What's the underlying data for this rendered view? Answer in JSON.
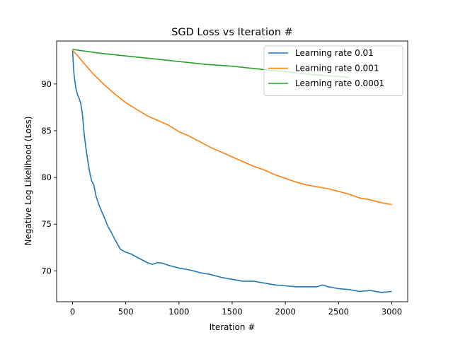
{
  "chart_data": {
    "type": "line",
    "title": "SGD Loss vs Iteration #",
    "xlabel": "Iteration #",
    "ylabel": "Negative Log Likelihood (Loss)",
    "xlim": [
      -150,
      3150
    ],
    "ylim": [
      66.7,
      94.6
    ],
    "xticks": [
      0,
      500,
      1000,
      1500,
      2000,
      2500,
      3000
    ],
    "yticks": [
      70,
      75,
      80,
      85,
      90
    ],
    "grid": false,
    "legend_position": "top-right",
    "series": [
      {
        "name": "Learning rate 0.01",
        "color": "#1f77b4",
        "x": [
          0,
          10,
          20,
          30,
          45,
          60,
          75,
          90,
          100,
          110,
          125,
          140,
          160,
          180,
          200,
          220,
          250,
          280,
          300,
          330,
          360,
          400,
          450,
          500,
          550,
          600,
          650,
          700,
          750,
          800,
          850,
          900,
          1000,
          1100,
          1200,
          1300,
          1400,
          1500,
          1600,
          1700,
          1800,
          1900,
          2000,
          2100,
          2200,
          2300,
          2350,
          2400,
          2500,
          2600,
          2700,
          2800,
          2900,
          3000
        ],
        "values": [
          93.6,
          91.5,
          90.4,
          89.6,
          88.9,
          88.5,
          88.0,
          87.0,
          85.8,
          84.5,
          83.2,
          82.0,
          80.6,
          79.6,
          79.2,
          78.0,
          77.0,
          76.2,
          75.7,
          74.8,
          74.2,
          73.3,
          72.3,
          72.0,
          71.8,
          71.5,
          71.2,
          70.9,
          70.7,
          70.9,
          70.8,
          70.6,
          70.3,
          70.1,
          69.8,
          69.6,
          69.3,
          69.1,
          68.9,
          68.9,
          68.7,
          68.5,
          68.4,
          68.3,
          68.3,
          68.3,
          68.5,
          68.3,
          68.1,
          68.0,
          67.8,
          67.9,
          67.7,
          67.8
        ]
      },
      {
        "name": "Learning rate 0.001",
        "color": "#ff7f0e",
        "x": [
          0,
          50,
          100,
          200,
          300,
          400,
          500,
          600,
          700,
          800,
          900,
          1000,
          1100,
          1200,
          1300,
          1400,
          1500,
          1600,
          1700,
          1800,
          1900,
          2000,
          2100,
          2200,
          2300,
          2400,
          2500,
          2600,
          2700,
          2800,
          2900,
          3000
        ],
        "values": [
          93.6,
          93.0,
          92.3,
          91.0,
          89.9,
          88.9,
          88.0,
          87.3,
          86.6,
          86.1,
          85.6,
          84.9,
          84.4,
          83.8,
          83.2,
          82.7,
          82.2,
          81.7,
          81.2,
          80.8,
          80.3,
          79.9,
          79.5,
          79.2,
          79.0,
          78.8,
          78.5,
          78.2,
          77.8,
          77.6,
          77.3,
          77.1
        ]
      },
      {
        "name": "Learning rate 0.0001",
        "color": "#2ca02c",
        "x": [
          0,
          250,
          500,
          750,
          1000,
          1250,
          1500,
          1750,
          2000,
          2250,
          2500,
          2600
        ],
        "values": [
          93.7,
          93.3,
          93.0,
          92.7,
          92.4,
          92.1,
          91.9,
          91.6,
          91.3,
          91.0,
          90.8,
          90.7
        ]
      }
    ]
  }
}
